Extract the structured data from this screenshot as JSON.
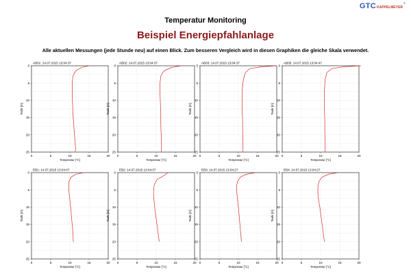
{
  "header": {
    "title": "Temperatur Monitoring",
    "subtitle": "Beispiel Energiepfahlanlage",
    "description": "Alle aktuellen Messungen (jede Stunde neu) auf einen Blick. Zum besseren Vergleich wird in diesen Graphiken die gleiche Skala verwendet."
  },
  "logo": {
    "brand": "GTC",
    "sub": "KAPPELMEYER",
    "reg": "®"
  },
  "colors": {
    "curve": "#d42a2a",
    "subtitle": "#8b1a1a",
    "logo": "#2a5aa8"
  },
  "chart_data": [
    {
      "type": "line",
      "title": "AB01: 14.07.2015 13:04:37",
      "xlabel": "Temperatur [°C]",
      "ylabel": "Teufe [m]",
      "xlim": [
        0,
        20
      ],
      "ylim": [
        25,
        0
      ],
      "xticks": [
        0,
        5,
        10,
        15,
        20
      ],
      "yticks": [
        0,
        5,
        10,
        15,
        20,
        25
      ],
      "grid": true,
      "series": [
        {
          "x": [
            15.0,
            13.0,
            11.5,
            10.8,
            10.6,
            10.6,
            10.7,
            10.8,
            11.0,
            11.2,
            11.4,
            11.5,
            11.4
          ],
          "y": [
            0,
            0.5,
            1.5,
            3,
            5,
            8,
            11,
            14,
            17,
            20,
            22.5,
            24,
            25
          ]
        }
      ]
    },
    {
      "type": "line",
      "title": "AB02: 14.07.2015 13:04:37",
      "xlabel": "Temperatur [°C]",
      "ylabel": "Teufe [m]",
      "xlim": [
        0,
        20
      ],
      "ylim": [
        25,
        0
      ],
      "xticks": [
        0,
        5,
        10,
        15,
        20
      ],
      "yticks": [
        0,
        5,
        10,
        15,
        20,
        25
      ],
      "grid": true,
      "series": [
        {
          "x": [
            16.5,
            14.0,
            12.0,
            11.2,
            11.0,
            11.0,
            11.1,
            11.2,
            11.2,
            11.3,
            11.4,
            11.3
          ],
          "y": [
            0,
            0.5,
            1.5,
            3,
            5,
            8,
            11,
            14,
            17,
            20,
            23,
            25
          ]
        }
      ]
    },
    {
      "type": "line",
      "title": "AB03: 14.07.2015 13:04:37",
      "xlabel": "Temperatur [°C]",
      "ylabel": "Teufe [m]",
      "xlim": [
        0,
        20
      ],
      "ylim": [
        25,
        0
      ],
      "xticks": [
        0,
        5,
        10,
        15,
        20
      ],
      "yticks": [
        0,
        5,
        10,
        15,
        20,
        25
      ],
      "grid": true,
      "series": [
        {
          "x": [
            20.0,
            16.0,
            13.0,
            11.8,
            11.3,
            11.0,
            11.0,
            11.0,
            11.1,
            11.1,
            11.2,
            11.2
          ],
          "y": [
            0,
            0.3,
            0.8,
            2,
            4,
            7,
            10,
            13,
            16,
            19,
            22,
            25
          ]
        }
      ]
    },
    {
      "type": "line",
      "title": "AB05: 14.07.2015 13:04:47",
      "xlabel": "Temperatur [°C]",
      "ylabel": "Teufe [m]",
      "xlim": [
        0,
        20
      ],
      "ylim": [
        25,
        0
      ],
      "xticks": [
        0,
        5,
        10,
        15,
        20
      ],
      "yticks": [
        0,
        5,
        10,
        15,
        20,
        25
      ],
      "grid": true,
      "series": [
        {
          "x": [
            20.5,
            16.0,
            13.0,
            11.6,
            11.2,
            11.0,
            11.0,
            11.0,
            11.1,
            11.1,
            11.2,
            11.2
          ],
          "y": [
            0,
            0.3,
            0.8,
            2,
            4,
            7,
            10,
            13,
            16,
            19,
            22,
            25
          ]
        }
      ]
    },
    {
      "type": "line",
      "title": "EB1: 14.07.2015 13:04:47",
      "xlabel": "Temperatur [°C]",
      "ylabel": "Teufe [m]",
      "xlim": [
        0,
        20
      ],
      "ylim": [
        25,
        0
      ],
      "xticks": [
        0,
        5,
        10,
        15,
        20
      ],
      "yticks": [
        0,
        5,
        10,
        15,
        20,
        25
      ],
      "grid": true,
      "series": [
        {
          "x": [
            13.5,
            11.5,
            10.3,
            9.8,
            9.7,
            9.8,
            10.0,
            10.2,
            10.4,
            10.6,
            10.8,
            10.9
          ],
          "y": [
            0,
            0.5,
            1.3,
            2.5,
            4,
            6,
            8,
            10,
            12.5,
            15,
            17.5,
            20
          ]
        }
      ]
    },
    {
      "type": "line",
      "title": "EB2: 14.07.2015 13:04:37",
      "xlabel": "Temperatur [°C]",
      "ylabel": "Teufe [m]",
      "xlim": [
        0,
        20
      ],
      "ylim": [
        25,
        0
      ],
      "xticks": [
        0,
        5,
        10,
        15,
        20
      ],
      "yticks": [
        0,
        5,
        10,
        15,
        20,
        25
      ],
      "grid": true,
      "series": [
        {
          "x": [
            13.0,
            12.5,
            11.5,
            10.2,
            9.5,
            9.3,
            9.4,
            9.6,
            9.9,
            10.2,
            10.5,
            10.8
          ],
          "y": [
            0,
            0.5,
            1.2,
            2,
            3.5,
            5.5,
            7.5,
            10,
            12.5,
            15,
            17.5,
            20
          ]
        }
      ]
    },
    {
      "type": "line",
      "title": "EB3: 14.07.2015 13:04:27",
      "xlabel": "Temperatur [°C]",
      "ylabel": "Teufe [m]",
      "xlim": [
        0,
        20
      ],
      "ylim": [
        25,
        0
      ],
      "xticks": [
        0,
        5,
        10,
        15,
        20
      ],
      "yticks": [
        0,
        5,
        10,
        15,
        20,
        25
      ],
      "grid": true,
      "series": [
        {
          "x": [
            14.5,
            12.0,
            10.5,
            9.8,
            9.5,
            9.6,
            9.8,
            10.0,
            10.2,
            10.4,
            10.6,
            10.8
          ],
          "y": [
            0,
            0.5,
            1.3,
            2.5,
            4,
            6,
            8,
            10,
            12.5,
            15,
            17.5,
            20
          ]
        }
      ]
    },
    {
      "type": "line",
      "title": "EB4: 14.07.2015 13:04:27",
      "xlabel": "Temperatur [°C]",
      "ylabel": "Teufe [m]",
      "xlim": [
        0,
        20
      ],
      "ylim": [
        25,
        0
      ],
      "xticks": [
        0,
        5,
        10,
        15,
        20
      ],
      "yticks": [
        0,
        5,
        10,
        15,
        20,
        25
      ],
      "grid": true,
      "series": [
        {
          "x": [
            14.5,
            12.0,
            10.4,
            9.6,
            9.3,
            9.3,
            9.5,
            9.8,
            10.1,
            10.4,
            10.7,
            11.0
          ],
          "y": [
            0,
            0.5,
            1.3,
            2.5,
            4,
            6,
            8,
            10,
            12.5,
            15,
            17.5,
            20
          ]
        }
      ]
    }
  ]
}
